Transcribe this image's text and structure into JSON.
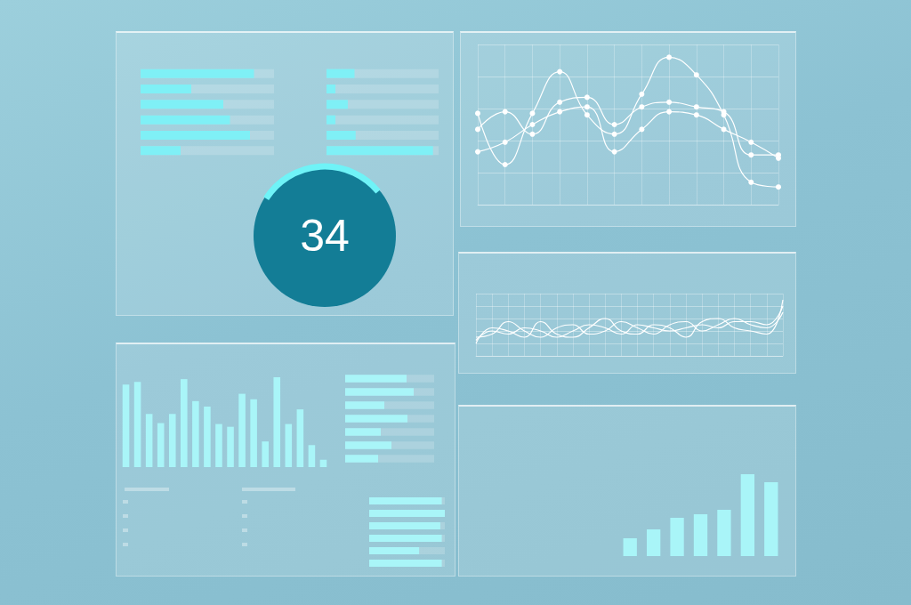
{
  "chart_data": [
    {
      "type": "bar",
      "orientation": "horizontal",
      "categories": [
        null,
        null,
        null,
        null,
        null,
        null
      ],
      "values": [
        85,
        38,
        62,
        67,
        82,
        30
      ],
      "color": "#7ff0f6",
      "xlim": [
        0,
        100
      ],
      "grid": false,
      "tick_labels": false
    },
    {
      "type": "bar",
      "orientation": "horizontal",
      "categories": [
        null,
        null,
        null,
        null,
        null,
        null
      ],
      "values": [
        25,
        8,
        19,
        8,
        26,
        95
      ],
      "color": "#7ff0f6",
      "xlim": [
        0,
        100
      ],
      "grid": false,
      "tick_labels": false
    },
    {
      "type": "kpi",
      "value": 34,
      "color": "#137d96"
    },
    {
      "type": "line",
      "categories": [
        null,
        null,
        null,
        null,
        null,
        null,
        null,
        null,
        null,
        null,
        null,
        null
      ],
      "series": [
        {
          "color": "#ffffff",
          "values": [
            57,
            25,
            57,
            83,
            56,
            44,
            69,
            92,
            81,
            56,
            14,
            11
          ]
        },
        {
          "color": "#ffffff",
          "values": [
            47,
            58,
            44,
            64,
            67,
            50,
            61,
            64,
            61,
            58,
            31,
            31
          ]
        },
        {
          "color": "#ffffff",
          "values": [
            33,
            39,
            50,
            58,
            61,
            33,
            47,
            58,
            56,
            47,
            39,
            29
          ]
        }
      ],
      "ylim": [
        0,
        100
      ],
      "yticks": [
        0,
        20,
        40,
        60,
        80,
        100
      ],
      "grid": true,
      "tick_labels": false,
      "marker": "circle",
      "line_style": "solid"
    },
    {
      "type": "line",
      "categories": [
        null,
        null,
        null,
        null,
        null,
        null,
        null,
        null,
        null,
        null,
        null,
        null,
        null,
        null,
        null,
        null,
        null,
        null,
        null,
        null
      ],
      "series": [
        {
          "color": "#ffffff",
          "values": [
            20,
            45,
            40,
            30,
            55,
            35,
            30,
            45,
            60,
            40,
            35,
            50,
            45,
            30,
            55,
            60,
            45,
            40,
            35,
            90
          ]
        },
        {
          "color": "#ffffff",
          "values": [
            30,
            35,
            55,
            40,
            30,
            45,
            50,
            35,
            40,
            55,
            45,
            35,
            50,
            55,
            40,
            50,
            60,
            50,
            45,
            70
          ]
        },
        {
          "color": "#ffffff",
          "values": [
            25,
            40,
            35,
            45,
            40,
            30,
            40,
            50,
            45,
            35,
            50,
            45,
            40,
            45,
            50,
            45,
            55,
            55,
            50,
            80
          ]
        }
      ],
      "ylim": [
        0,
        100
      ],
      "yticks": [
        0,
        20,
        40,
        60,
        80,
        100
      ],
      "grid": true,
      "tick_labels": false,
      "marker": "none",
      "line_style": "solid"
    },
    {
      "type": "bar",
      "categories": [
        null,
        null,
        null,
        null,
        null,
        null,
        null,
        null,
        null,
        null,
        null,
        null,
        null,
        null,
        null,
        null,
        null,
        null
      ],
      "values": [
        90,
        93,
        58,
        48,
        58,
        96,
        72,
        66,
        47,
        44,
        80,
        74,
        28,
        98,
        47,
        63,
        24,
        8
      ],
      "color": "#a9f5f8",
      "ylim": [
        0,
        100
      ],
      "grid": false,
      "tick_labels": false
    },
    {
      "type": "bar",
      "orientation": "horizontal",
      "categories": [
        null,
        null,
        null,
        null,
        null,
        null,
        null
      ],
      "values": [
        69,
        77,
        44,
        70,
        40,
        52,
        37
      ],
      "color": "#a9f5f8",
      "xlim": [
        0,
        100
      ],
      "grid": false,
      "tick_labels": false
    },
    {
      "type": "bar",
      "orientation": "horizontal",
      "categories": [
        null,
        null,
        null,
        null,
        null,
        null
      ],
      "values": [
        96,
        100,
        94,
        96,
        66,
        96
      ],
      "color": "#a9f5f8",
      "xlim": [
        0,
        100
      ],
      "grid": false,
      "tick_labels": false
    },
    {
      "type": "bar",
      "categories": [
        null,
        null,
        null,
        null,
        null,
        null,
        null
      ],
      "values": [
        20,
        30,
        43,
        47,
        52,
        92,
        83
      ],
      "color": "#a9f5f8",
      "ylim": [
        0,
        100
      ],
      "grid": false,
      "tick_labels": false
    }
  ]
}
